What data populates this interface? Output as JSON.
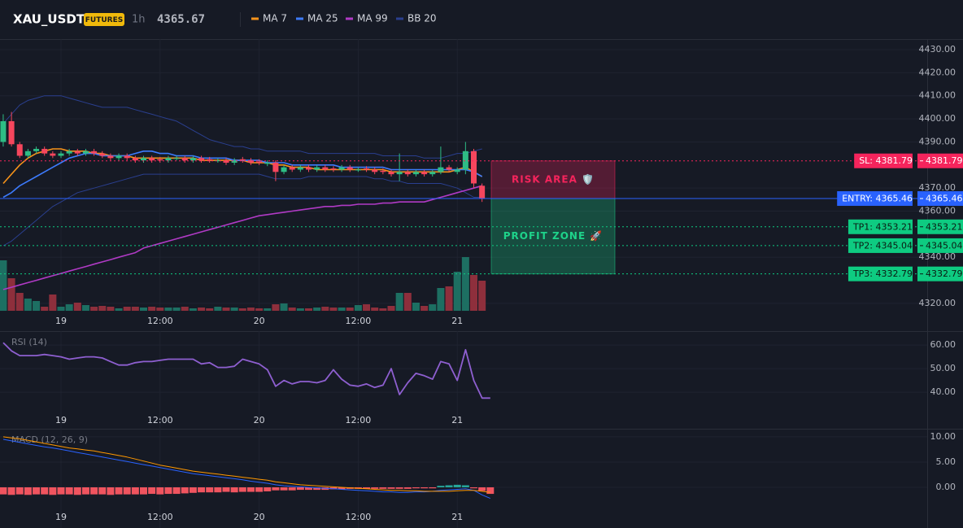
{
  "header": {
    "symbol": "XAU_USDT",
    "badge": "FUTURES",
    "interval": "1h",
    "price": 4365.67,
    "price_color": "#f6465d"
  },
  "chart_data": [
    {
      "type": "candlestick",
      "categories": [
        null,
        null,
        null,
        null,
        null,
        null,
        null,
        "19",
        null,
        null,
        null,
        null,
        null,
        null,
        null,
        null,
        null,
        null,
        null,
        "12:00",
        null,
        null,
        null,
        null,
        null,
        null,
        null,
        null,
        null,
        null,
        null,
        "20",
        null,
        null,
        null,
        null,
        null,
        null,
        null,
        null,
        null,
        null,
        null,
        "12:00",
        null,
        null,
        null,
        null,
        null,
        null,
        null,
        null,
        null,
        null,
        null,
        "21",
        null,
        null,
        null
      ],
      "open": [
        4390,
        4399,
        4389,
        4384,
        4386,
        4387,
        4385,
        4384,
        4385,
        4386,
        4385,
        4386,
        4385,
        4384,
        4383,
        4384,
        4383,
        4382,
        4383,
        4382.5,
        4382,
        4383,
        4383,
        4382,
        4383,
        4382.5,
        4382,
        4382,
        4381,
        4382.5,
        4382,
        4381.5,
        4380.5,
        4381,
        4377,
        4379,
        4378,
        4379,
        4378,
        4379,
        4378.5,
        4378,
        4379,
        4378,
        4378.5,
        4378,
        4377.5,
        4377,
        4376,
        4377,
        4376,
        4377,
        4376,
        4377,
        4379,
        4377,
        4378,
        4386,
        4371
      ],
      "high": [
        4402,
        4403,
        4390,
        4387,
        4388,
        4388,
        4386,
        4386,
        4387,
        4387,
        4387,
        4387,
        4386,
        4385,
        4385,
        4385,
        4384,
        4384,
        4384,
        4383.5,
        4384,
        4384,
        4384,
        4384,
        4384,
        4383.5,
        4383,
        4383,
        4383,
        4383.5,
        4383,
        4382.5,
        4382,
        4382,
        4380,
        4380,
        4380,
        4380,
        4380,
        4380,
        4379.5,
        4380,
        4380,
        4379,
        4379.5,
        4379,
        4378.5,
        4378,
        4385,
        4378,
        4378,
        4378,
        4378,
        4388,
        4380,
        4379,
        4390,
        4387,
        4372
      ],
      "low": [
        4388,
        4388,
        4383,
        4383,
        4385,
        4384,
        4383,
        4383,
        4384,
        4384,
        4384,
        4384,
        4383,
        4382,
        4382,
        4382,
        4381,
        4381,
        4381,
        4381,
        4381,
        4382,
        4381,
        4381,
        4381,
        4381,
        4381,
        4380,
        4380,
        4381,
        4380,
        4380,
        4379.5,
        4373,
        4376,
        4377,
        4377,
        4377,
        4377,
        4377,
        4377,
        4377,
        4377,
        4377,
        4377,
        4376,
        4376,
        4375,
        4373,
        4375,
        4375,
        4375,
        4375,
        4376,
        4377,
        4376,
        4376,
        4370,
        4364
      ],
      "close": [
        4399,
        4389,
        4384,
        4386,
        4387,
        4385,
        4384,
        4385,
        4386,
        4385,
        4386,
        4385,
        4384,
        4383,
        4384,
        4383,
        4382,
        4383,
        4382,
        4382,
        4383,
        4383,
        4382,
        4383,
        4382,
        4382,
        4382,
        4381,
        4382,
        4382,
        4381,
        4381,
        4381,
        4377,
        4379,
        4378,
        4379,
        4378,
        4379,
        4378,
        4378,
        4379,
        4378,
        4378,
        4378,
        4377,
        4377,
        4376,
        4377,
        4376,
        4377,
        4376,
        4377,
        4379,
        4378,
        4378,
        4386,
        4372,
        4365.5
      ],
      "volume": [
        62,
        40,
        22,
        15,
        12,
        5,
        20,
        5,
        8,
        10,
        7,
        5,
        6,
        5,
        3,
        5,
        5,
        4,
        5,
        4,
        4,
        4,
        5,
        3,
        4,
        3,
        5,
        4,
        4,
        3,
        4,
        3,
        3,
        8,
        9,
        4,
        3,
        3,
        4,
        5,
        4,
        4,
        4,
        7,
        8,
        4,
        3,
        6,
        22,
        22,
        10,
        6,
        8,
        28,
        30,
        48,
        66,
        44,
        37
      ],
      "up_color": "#2ebd85",
      "down_color": "#f6465d",
      "volume_up_color": "#1d6f62",
      "volume_down_color": "#8e2f3c",
      "series": [
        {
          "name": "MA 7",
          "color": "#f7931a",
          "values": [
            4372,
            4376,
            4380,
            4383,
            4385,
            4386,
            4387,
            4387,
            4386,
            4386,
            4386,
            4385,
            4385,
            4384,
            4384,
            4384,
            4383,
            4383,
            4383,
            4383,
            4383,
            4383,
            4383,
            4383,
            4382,
            4382,
            4382,
            4382,
            4382,
            4382,
            4381,
            4381,
            4381,
            4380,
            4380,
            4379,
            4379,
            4379,
            4378,
            4378,
            4378,
            4378,
            4378,
            4378,
            4378,
            4378,
            4378,
            4377,
            4377,
            4377,
            4377,
            4377,
            4377,
            4377,
            4377,
            4378,
            4379,
            4377,
            4375
          ]
        },
        {
          "name": "MA 25",
          "color": "#3d7bfd",
          "values": [
            4366,
            4368,
            4371,
            4373,
            4375,
            4377,
            4379,
            4381,
            4383,
            4384,
            4385,
            4385,
            4384,
            4384,
            4384,
            4384,
            4385,
            4386,
            4386,
            4385,
            4385,
            4384,
            4384,
            4384,
            4383,
            4383,
            4383,
            4383,
            4382,
            4382,
            4382,
            4382,
            4381,
            4381,
            4381,
            4380,
            4380,
            4380,
            4380,
            4380,
            4380,
            4379,
            4379,
            4379,
            4379,
            4379,
            4379,
            4378,
            4378,
            4378,
            4378,
            4378,
            4378,
            4378,
            4378,
            4378,
            4378,
            4377,
            4375
          ]
        },
        {
          "name": "MA 99",
          "color": "#b03ac5",
          "values": [
            4326,
            4327,
            4328,
            4329,
            4330,
            4331,
            4332,
            4333,
            4334,
            4335,
            4336,
            4337,
            4338,
            4339,
            4340,
            4341,
            4342,
            4344,
            4345,
            4346,
            4347,
            4348,
            4349,
            4350,
            4351,
            4352,
            4353,
            4354,
            4355,
            4356,
            4357,
            4358,
            4358.5,
            4359,
            4359.5,
            4360,
            4360.5,
            4361,
            4361.5,
            4362,
            4362,
            4362.5,
            4362.5,
            4363,
            4363,
            4363,
            4363.5,
            4363.5,
            4364,
            4364,
            4364,
            4364,
            4365,
            4366,
            4367,
            4368,
            4369,
            4370,
            4371
          ]
        }
      ],
      "bands": {
        "name": "BB 20",
        "color": "#2a3f8f",
        "upper": [
          4398,
          4402,
          4406,
          4408,
          4409,
          4410,
          4410,
          4410,
          4409,
          4408,
          4407,
          4406,
          4405,
          4405,
          4405,
          4405,
          4404,
          4403,
          4402,
          4401,
          4400,
          4399,
          4397,
          4395,
          4393,
          4391,
          4390,
          4389,
          4388,
          4388,
          4387,
          4387,
          4386,
          4386,
          4386,
          4386,
          4386,
          4385,
          4385,
          4385,
          4385,
          4385,
          4385,
          4385,
          4385,
          4385,
          4384,
          4384,
          4384,
          4384,
          4384,
          4383,
          4383,
          4383,
          4384,
          4385,
          4385,
          4386,
          4387
        ],
        "lower": [
          4345,
          4347,
          4350,
          4353,
          4356,
          4359,
          4362,
          4364,
          4366,
          4368,
          4369,
          4370,
          4371,
          4372,
          4373,
          4374,
          4375,
          4376,
          4376,
          4376,
          4376,
          4376,
          4376,
          4376,
          4376,
          4376,
          4376,
          4376,
          4376,
          4376,
          4376,
          4376,
          4375,
          4374,
          4374,
          4374,
          4374,
          4375,
          4375,
          4375,
          4375,
          4375,
          4375,
          4375,
          4375,
          4374,
          4374,
          4373,
          4373,
          4372,
          4372,
          4372,
          4372,
          4372,
          4371,
          4370,
          4368,
          4366,
          4366
        ]
      },
      "levels": [
        {
          "label": "SL: 4381.79",
          "value": 4381.79,
          "color": "#f5245c",
          "text_color": "#ffffff",
          "dotted": true
        },
        {
          "label": "ENTRY: 4365.46",
          "value": 4365.46,
          "color": "#2962ff",
          "text_color": "#ffffff",
          "dotted": false
        },
        {
          "label": "TP1: 4353.21",
          "value": 4353.21,
          "color": "#0ecb81",
          "text_color": "#0b1a12",
          "dotted": true
        },
        {
          "label": "TP2: 4345.04",
          "value": 4345.04,
          "color": "#0ecb81",
          "text_color": "#0b1a12",
          "dotted": true
        },
        {
          "label": "TP3: 4332.79",
          "value": 4332.79,
          "color": "#0ecb81",
          "text_color": "#0b1a12",
          "dotted": true
        }
      ],
      "zones": [
        {
          "label": "RISK AREA 🛡️",
          "color": "#f5245c"
        },
        {
          "label": "PROFIT ZONE 🚀",
          "color": "#1ed38a"
        }
      ],
      "ylim": [
        4316.8,
        4434.6
      ],
      "yticks": [
        {
          "value": 4430,
          "label": "4430.00"
        },
        {
          "value": 4420,
          "label": "4420.00"
        },
        {
          "value": 4410,
          "label": "4410.00"
        },
        {
          "value": 4400,
          "label": "4400.00"
        },
        {
          "value": 4390,
          "label": "4390.00"
        },
        {
          "value": 4370,
          "label": "4370.00"
        },
        {
          "value": 4360,
          "label": "4360.00"
        },
        {
          "value": 4340,
          "label": "4340.00"
        },
        {
          "value": 4320,
          "label": "4320.00"
        }
      ],
      "grid": true
    },
    {
      "type": "line",
      "title": "RSI (14)",
      "categories": [
        null,
        null,
        null,
        null,
        null,
        null,
        null,
        "19",
        null,
        null,
        null,
        null,
        null,
        null,
        null,
        null,
        null,
        null,
        null,
        "12:00",
        null,
        null,
        null,
        null,
        null,
        null,
        null,
        null,
        null,
        null,
        null,
        "20",
        null,
        null,
        null,
        null,
        null,
        null,
        null,
        null,
        null,
        null,
        null,
        "12:00",
        null,
        null,
        null,
        null,
        null,
        null,
        null,
        null,
        null,
        null,
        null,
        "21",
        null,
        null,
        null,
        null
      ],
      "series": [
        {
          "name": "RSI",
          "color": "#8e5fd0",
          "values": [
            61,
            57.5,
            55.5,
            55.5,
            55.5,
            56,
            55.5,
            55,
            54,
            54.5,
            55,
            55,
            54.5,
            53,
            51.5,
            51.5,
            52.5,
            53,
            53,
            53.5,
            54,
            54,
            54,
            54,
            52,
            52.5,
            50.5,
            50.5,
            51,
            54,
            53,
            52,
            49.5,
            42.5,
            45,
            43.5,
            44.5,
            44.5,
            44,
            45,
            49.5,
            45.5,
            43,
            42.5,
            43.5,
            42,
            43,
            50,
            39,
            44,
            48,
            47,
            45.5,
            53,
            52,
            45,
            58,
            45,
            37.5,
            37.5
          ]
        }
      ],
      "ylim": [
        24.5,
        65.9
      ],
      "yticks": [
        {
          "value": 60,
          "label": "60.00"
        },
        {
          "value": 50,
          "label": "50.00"
        },
        {
          "value": 40,
          "label": "40.00"
        }
      ],
      "grid": true
    },
    {
      "type": "macd",
      "title": "MACD (12, 26, 9)",
      "categories": [
        null,
        null,
        null,
        null,
        null,
        null,
        null,
        "19",
        null,
        null,
        null,
        null,
        null,
        null,
        null,
        null,
        null,
        null,
        null,
        "12:00",
        null,
        null,
        null,
        null,
        null,
        null,
        null,
        null,
        null,
        null,
        null,
        "20",
        null,
        null,
        null,
        null,
        null,
        null,
        null,
        null,
        null,
        null,
        null,
        "12:00",
        null,
        null,
        null,
        null,
        null,
        null,
        null,
        null,
        null,
        null,
        null,
        "21",
        null,
        null,
        null,
        null
      ],
      "series": [
        {
          "name": "MACD",
          "color": "#2962ff",
          "values": [
            9.5,
            9.2,
            8.9,
            8.6,
            8.3,
            8.0,
            7.8,
            7.5,
            7.2,
            6.9,
            6.6,
            6.3,
            6.0,
            5.7,
            5.4,
            5.1,
            4.8,
            4.5,
            4.2,
            3.9,
            3.6,
            3.3,
            3.0,
            2.7,
            2.5,
            2.3,
            2.1,
            1.9,
            1.7,
            1.5,
            1.2,
            1.0,
            0.8,
            0.5,
            0.3,
            0.2,
            0.1,
            0.0,
            -0.1,
            -0.2,
            -0.3,
            -0.4,
            -0.5,
            -0.6,
            -0.7,
            -0.8,
            -0.9,
            -0.9,
            -1.0,
            -1.0,
            -0.9,
            -0.9,
            -0.8,
            -0.6,
            -0.5,
            -0.4,
            -0.3,
            -0.6,
            -1.5,
            -2.2
          ]
        },
        {
          "name": "Signal",
          "color": "#ff9800",
          "values": [
            10.0,
            9.8,
            9.6,
            9.3,
            9.0,
            8.7,
            8.4,
            8.1,
            7.8,
            7.6,
            7.4,
            7.2,
            6.9,
            6.6,
            6.3,
            6.0,
            5.6,
            5.2,
            4.8,
            4.4,
            4.1,
            3.8,
            3.5,
            3.2,
            3.0,
            2.8,
            2.6,
            2.4,
            2.2,
            2.0,
            1.8,
            1.6,
            1.4,
            1.1,
            0.9,
            0.7,
            0.5,
            0.4,
            0.3,
            0.2,
            0.1,
            0.0,
            -0.1,
            -0.2,
            -0.3,
            -0.4,
            -0.5,
            -0.6,
            -0.6,
            -0.7,
            -0.7,
            -0.8,
            -0.8,
            -0.8,
            -0.8,
            -0.7,
            -0.6,
            -0.6,
            -0.8,
            -1.0
          ]
        }
      ],
      "histogram": [
        -1.4,
        -1.5,
        -1.4,
        -1.5,
        -1.4,
        -1.4,
        -1.5,
        -1.4,
        -1.4,
        -1.5,
        -1.4,
        -1.4,
        -1.4,
        -1.5,
        -1.4,
        -1.4,
        -1.4,
        -1.4,
        -1.3,
        -1.4,
        -1.3,
        -1.3,
        -1.2,
        -1.1,
        -1.0,
        -1.0,
        -1.0,
        -0.9,
        -1.0,
        -0.9,
        -0.9,
        -0.9,
        -0.8,
        -0.6,
        -0.6,
        -0.6,
        -0.5,
        -0.5,
        -0.5,
        -0.5,
        -0.4,
        -0.4,
        -0.3,
        -0.3,
        -0.3,
        -0.3,
        -0.3,
        -0.3,
        -0.3,
        -0.3,
        -0.2,
        -0.2,
        -0.2,
        0.3,
        0.4,
        0.5,
        0.4,
        -0.2,
        -0.7,
        -1.3
      ],
      "hist_up_color": "#26a69a",
      "hist_down_color": "#f0545f",
      "ylim": [
        -8.06,
        11.6
      ],
      "yticks": [
        {
          "value": 10,
          "label": "10.00"
        },
        {
          "value": 5,
          "label": "5.00"
        },
        {
          "value": 0,
          "label": "0.00"
        }
      ],
      "grid": true
    }
  ]
}
